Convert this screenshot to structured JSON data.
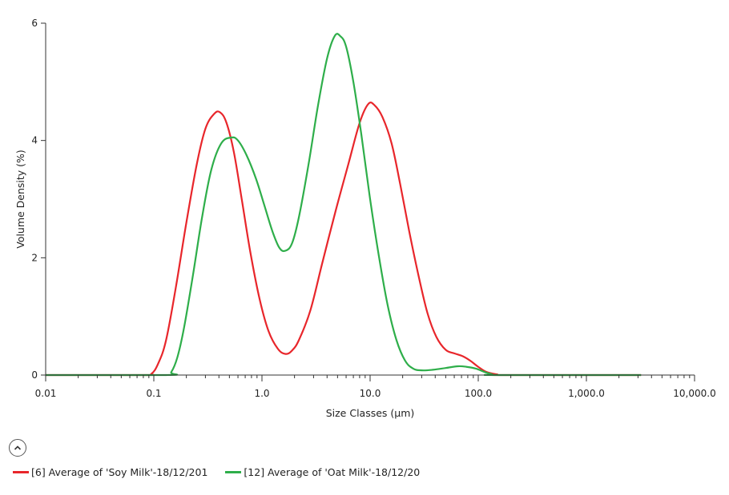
{
  "chart_data": {
    "type": "line",
    "xlabel": "Size Classes (µm)",
    "ylabel": "Volume Density (%)",
    "x_scale": "log",
    "xlim": [
      0.01,
      10000
    ],
    "ylim": [
      0,
      6
    ],
    "x_ticks": [
      {
        "value": 0.01,
        "label": "0.01"
      },
      {
        "value": 0.1,
        "label": "0.1"
      },
      {
        "value": 1,
        "label": "1.0"
      },
      {
        "value": 10,
        "label": "10.0"
      },
      {
        "value": 100,
        "label": "100.0"
      },
      {
        "value": 1000,
        "label": "1,000.0"
      },
      {
        "value": 10000,
        "label": "10,000.0"
      }
    ],
    "y_ticks": [
      {
        "value": 0,
        "label": "0"
      },
      {
        "value": 2,
        "label": "2"
      },
      {
        "value": 4,
        "label": "4"
      },
      {
        "value": 6,
        "label": "6"
      }
    ],
    "grid": false,
    "legend_position": "bottom-left",
    "series": [
      {
        "name": "[6] Average of 'Soy Milk'-18/12/201",
        "color": "#e8262b",
        "points": [
          [
            0.01,
            0
          ],
          [
            0.08,
            0
          ],
          [
            0.095,
            0.02
          ],
          [
            0.11,
            0.2
          ],
          [
            0.13,
            0.6
          ],
          [
            0.16,
            1.5
          ],
          [
            0.2,
            2.6
          ],
          [
            0.25,
            3.6
          ],
          [
            0.3,
            4.2
          ],
          [
            0.36,
            4.45
          ],
          [
            0.41,
            4.48
          ],
          [
            0.47,
            4.3
          ],
          [
            0.55,
            3.8
          ],
          [
            0.65,
            3.0
          ],
          [
            0.78,
            2.1
          ],
          [
            0.95,
            1.3
          ],
          [
            1.15,
            0.75
          ],
          [
            1.4,
            0.45
          ],
          [
            1.65,
            0.36
          ],
          [
            1.9,
            0.42
          ],
          [
            2.2,
            0.6
          ],
          [
            2.8,
            1.1
          ],
          [
            3.6,
            1.9
          ],
          [
            4.8,
            2.8
          ],
          [
            6.3,
            3.6
          ],
          [
            8.0,
            4.3
          ],
          [
            9.6,
            4.62
          ],
          [
            11.0,
            4.6
          ],
          [
            13.0,
            4.4
          ],
          [
            15.8,
            3.95
          ],
          [
            19.0,
            3.25
          ],
          [
            23.0,
            2.45
          ],
          [
            28.0,
            1.7
          ],
          [
            34.0,
            1.05
          ],
          [
            41.0,
            0.65
          ],
          [
            50.0,
            0.43
          ],
          [
            60.0,
            0.37
          ],
          [
            72.0,
            0.32
          ],
          [
            85.0,
            0.24
          ],
          [
            100.0,
            0.14
          ],
          [
            120.0,
            0.05
          ],
          [
            150.0,
            0.01
          ],
          [
            170.0,
            0
          ],
          [
            3200.0,
            0
          ]
        ]
      },
      {
        "name": "[12] Average of 'Oat Milk'-18/12/20",
        "color": "#2eae4a",
        "points": [
          [
            0.01,
            0
          ],
          [
            0.13,
            0
          ],
          [
            0.145,
            0.05
          ],
          [
            0.165,
            0.3
          ],
          [
            0.19,
            0.8
          ],
          [
            0.23,
            1.7
          ],
          [
            0.28,
            2.7
          ],
          [
            0.34,
            3.5
          ],
          [
            0.42,
            3.95
          ],
          [
            0.52,
            4.05
          ],
          [
            0.6,
            4.0
          ],
          [
            0.72,
            3.75
          ],
          [
            0.88,
            3.35
          ],
          [
            1.05,
            2.9
          ],
          [
            1.25,
            2.45
          ],
          [
            1.45,
            2.17
          ],
          [
            1.65,
            2.12
          ],
          [
            1.9,
            2.25
          ],
          [
            2.2,
            2.7
          ],
          [
            2.7,
            3.6
          ],
          [
            3.3,
            4.6
          ],
          [
            4.0,
            5.4
          ],
          [
            4.7,
            5.78
          ],
          [
            5.3,
            5.78
          ],
          [
            6.0,
            5.6
          ],
          [
            7.0,
            5.0
          ],
          [
            8.3,
            4.1
          ],
          [
            10.0,
            3.0
          ],
          [
            12.0,
            2.05
          ],
          [
            14.5,
            1.2
          ],
          [
            17.5,
            0.6
          ],
          [
            21.0,
            0.25
          ],
          [
            25.0,
            0.11
          ],
          [
            30.0,
            0.08
          ],
          [
            38.0,
            0.09
          ],
          [
            50.0,
            0.12
          ],
          [
            65.0,
            0.15
          ],
          [
            78.0,
            0.14
          ],
          [
            95.0,
            0.11
          ],
          [
            115.0,
            0.05
          ],
          [
            135.0,
            0.01
          ],
          [
            150.0,
            0
          ],
          [
            3200.0,
            0
          ]
        ]
      }
    ]
  }
}
